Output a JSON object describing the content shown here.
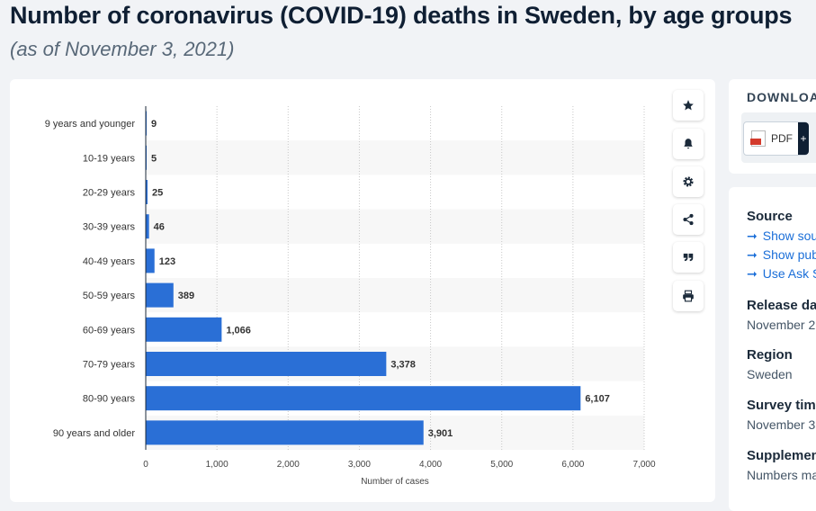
{
  "title": "Number of coronavirus (COVID-19) deaths in Sweden, by age groups",
  "subtitle": "(as of November 3, 2021)",
  "colors": {
    "bar": "#2a6fd6",
    "stripe": "#f7f7f7",
    "accent": "#1a6ed8"
  },
  "toolbar": [
    "star-icon",
    "bell-icon",
    "gear-icon",
    "share-icon",
    "quote-icon",
    "print-icon"
  ],
  "download": {
    "heading": "DOWNLOA",
    "pdf_label": "PDF",
    "plus": "+"
  },
  "meta": {
    "source_heading": "Source",
    "links": [
      "Show sou",
      "Show pub",
      "Use Ask S"
    ],
    "release_heading": "Release da",
    "release_value": "November 2",
    "region_heading": "Region",
    "region_value": "Sweden",
    "survey_heading": "Survey tim",
    "survey_value": "November 3",
    "supp_heading": "Supplemen",
    "supp_value": "Numbers ma"
  },
  "chart_data": {
    "type": "bar",
    "orientation": "horizontal",
    "categories": [
      "9 years and younger",
      "10-19 years",
      "20-29 years",
      "30-39 years",
      "40-49 years",
      "50-59 years",
      "60-69 years",
      "70-79 years",
      "80-90 years",
      "90 years and older"
    ],
    "values": [
      9,
      5,
      25,
      46,
      123,
      389,
      1066,
      3378,
      6107,
      3901
    ],
    "value_labels": [
      "9",
      "5",
      "25",
      "46",
      "123",
      "389",
      "1,066",
      "3,378",
      "6,107",
      "3,901"
    ],
    "x_ticks": [
      0,
      1000,
      2000,
      3000,
      4000,
      5000,
      6000,
      7000
    ],
    "x_tick_labels": [
      "0",
      "1,000",
      "2,000",
      "3,000",
      "4,000",
      "5,000",
      "6,000",
      "7,000"
    ],
    "xlabel": "Number of cases",
    "xlim": [
      0,
      7000
    ],
    "grid": "vertical-dotted"
  }
}
